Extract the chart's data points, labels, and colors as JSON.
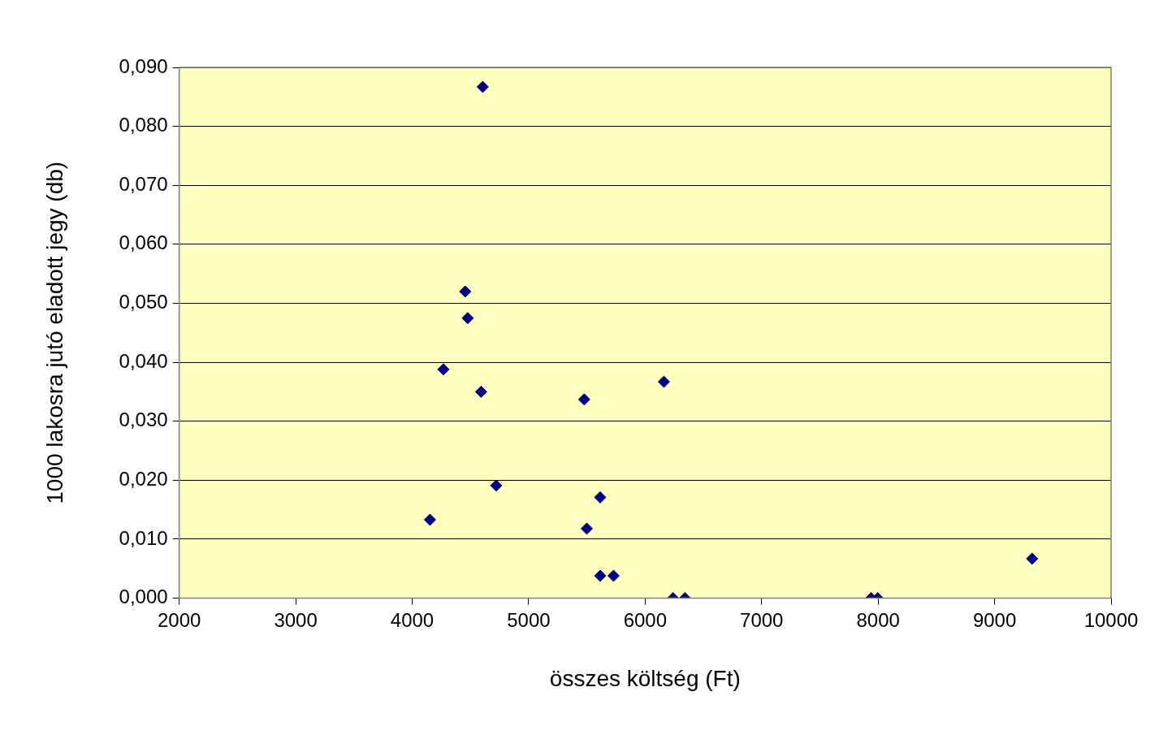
{
  "chart_data": {
    "type": "scatter",
    "xlabel": "összes költség (Ft)",
    "ylabel": "1000 lakosra jutó eladott jegy (db)",
    "x": [
      4606,
      4455,
      4477,
      4268,
      4592,
      5477,
      6161,
      4721,
      4153,
      5614,
      5499,
      5614,
      5729,
      6240,
      6341,
      7940,
      7997,
      9322
    ],
    "series": [
      {
        "color": "#000080",
        "values": [
          0.0867,
          0.052,
          0.0475,
          0.0388,
          0.035,
          0.0337,
          0.0367,
          0.0191,
          0.0133,
          0.0171,
          0.0118,
          0.0038,
          0.0038,
          0,
          0,
          0,
          0,
          0.0067
        ]
      }
    ],
    "xlim": [
      2000,
      10000
    ],
    "xticks": [
      2000,
      3000,
      4000,
      5000,
      6000,
      7000,
      8000,
      9000,
      10000
    ],
    "ylim": [
      0,
      0.09
    ],
    "yticks": [
      {
        "value": 0,
        "label": "0,000"
      },
      {
        "value": 0.01,
        "label": "0,010"
      },
      {
        "value": 0.02,
        "label": "0,020"
      },
      {
        "value": 0.03,
        "label": "0,030"
      },
      {
        "value": 0.04,
        "label": "0,040"
      },
      {
        "value": 0.05,
        "label": "0,050"
      },
      {
        "value": 0.06,
        "label": "0,060"
      },
      {
        "value": 0.07,
        "label": "0,070"
      },
      {
        "value": 0.08,
        "label": "0,080"
      },
      {
        "value": 0.09,
        "label": "0,090"
      }
    ],
    "grid": "y",
    "marker": "diamond",
    "legend": false
  }
}
